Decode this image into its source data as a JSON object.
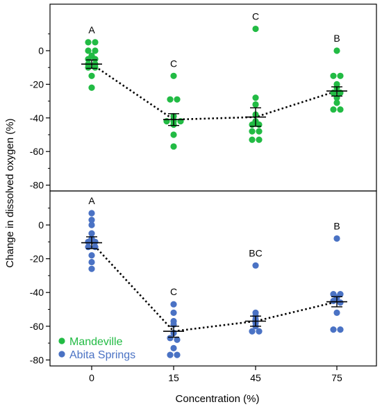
{
  "chart_data": {
    "type": "scatter",
    "xlabel": "Concentration (%)",
    "ylabel": "Change in dissolved oxygen (%)",
    "categories": [
      "0",
      "15",
      "45",
      "75"
    ],
    "ylim": [
      -83,
      22
    ],
    "y_ticks": [
      0,
      -20,
      -40,
      -60,
      -80
    ],
    "legend": [
      {
        "name": "Mandeville",
        "color": "#22bb44"
      },
      {
        "name": "Abita Springs",
        "color": "#4a72c4"
      }
    ],
    "panels": [
      {
        "series_name": "Mandeville",
        "color": "#22bb44",
        "groups": [
          {
            "x": "0",
            "letter": "A",
            "mean": -8,
            "sem_low": -10.5,
            "sem_high": -5.5,
            "values": [
              5,
              5,
              0,
              0,
              -3,
              -5,
              -5,
              -8,
              -8,
              -10,
              -10,
              -15,
              -22
            ]
          },
          {
            "x": "15",
            "letter": "C",
            "mean": -41,
            "sem_low": -44.5,
            "sem_high": -37.5,
            "values": [
              -15,
              -29,
              -29,
              -39,
              -42,
              -42,
              -42,
              -44,
              -50,
              -57
            ]
          },
          {
            "x": "45",
            "letter": "C",
            "mean": -39.5,
            "sem_low": -45,
            "sem_high": -34,
            "values": [
              13,
              -28,
              -32,
              -38,
              -42,
              -44,
              -44,
              -48,
              -48,
              -53,
              -53
            ]
          },
          {
            "x": "75",
            "letter": "B",
            "mean": -24,
            "sem_low": -27,
            "sem_high": -21.5,
            "values": [
              0,
              -15,
              -15,
              -20,
              -22,
              -25,
              -25,
              -28,
              -31,
              -35,
              -35
            ]
          }
        ]
      },
      {
        "series_name": "Abita Springs",
        "color": "#4a72c4",
        "groups": [
          {
            "x": "0",
            "letter": "A",
            "mean": -10.5,
            "sem_low": -14,
            "sem_high": -7,
            "values": [
              7,
              3,
              0,
              -5,
              -8,
              -10,
              -10,
              -13,
              -13,
              -18,
              -22,
              -26
            ]
          },
          {
            "x": "15",
            "letter": "C",
            "mean": -63,
            "sem_low": -66.5,
            "sem_high": -60,
            "values": [
              -47,
              -52,
              -57,
              -59,
              -64,
              -67,
              -68,
              -73,
              -77,
              -77
            ]
          },
          {
            "x": "45",
            "letter": "BC",
            "mean": -57,
            "sem_low": -60,
            "sem_high": -54,
            "values": [
              -24,
              -52,
              -54,
              -56,
              -58,
              -60,
              -63,
              -63
            ]
          },
          {
            "x": "75",
            "letter": "B",
            "mean": -45.5,
            "sem_low": -48.5,
            "sem_high": -42.5,
            "values": [
              -8,
              -41,
              -41,
              -43,
              -45,
              -46,
              -52,
              -62,
              -62
            ]
          }
        ]
      }
    ]
  }
}
